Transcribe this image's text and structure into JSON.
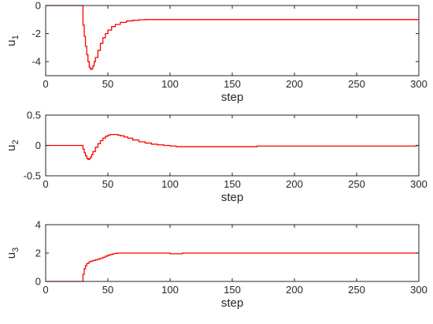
{
  "chart_data": [
    {
      "type": "line",
      "xlabel": "step",
      "ylabel": {
        "base": "u",
        "sub": "1"
      },
      "xlim": [
        0,
        300
      ],
      "ylim": [
        -5,
        0
      ],
      "xticks": [
        0,
        50,
        100,
        150,
        200,
        250,
        300
      ],
      "yticks": [
        -4,
        -2,
        0
      ],
      "ytick_labels": [
        "-4",
        "-2",
        "0"
      ],
      "grid": false,
      "step_plot": true,
      "series": [
        {
          "color": "#ff0000",
          "x": [
            0,
            29,
            30,
            31,
            32,
            33,
            34,
            35,
            36,
            37,
            38,
            39,
            40,
            42,
            44,
            46,
            48,
            50,
            53,
            56,
            60,
            65,
            70,
            75,
            80,
            85,
            90,
            100,
            150,
            200,
            250,
            300
          ],
          "y": [
            0,
            0,
            -1.4,
            -2.2,
            -2.9,
            -3.5,
            -4.0,
            -4.4,
            -4.55,
            -4.5,
            -4.3,
            -4.0,
            -3.7,
            -3.2,
            -2.7,
            -2.3,
            -2.0,
            -1.75,
            -1.5,
            -1.35,
            -1.2,
            -1.1,
            -1.05,
            -1.02,
            -1.0,
            -1.0,
            -1.0,
            -1.0,
            -1.0,
            -1.0,
            -1.0,
            -1.0
          ]
        }
      ]
    },
    {
      "type": "line",
      "xlabel": "step",
      "ylabel": {
        "base": "u",
        "sub": "2"
      },
      "xlim": [
        0,
        300
      ],
      "ylim": [
        -0.5,
        0.5
      ],
      "xticks": [
        0,
        50,
        100,
        150,
        200,
        250,
        300
      ],
      "yticks": [
        -0.5,
        0,
        0.5
      ],
      "ytick_labels": [
        "-0.5",
        "0",
        "0.5"
      ],
      "grid": false,
      "step_plot": true,
      "series": [
        {
          "color": "#ff0000",
          "x": [
            0,
            29,
            30,
            31,
            32,
            33,
            34,
            35,
            36,
            37,
            38,
            40,
            42,
            44,
            46,
            48,
            50,
            52,
            54,
            56,
            58,
            60,
            63,
            66,
            70,
            75,
            80,
            85,
            90,
            95,
            100,
            105,
            110,
            130,
            150,
            165,
            170,
            200,
            250,
            298,
            300
          ],
          "y": [
            0,
            0,
            -0.06,
            -0.12,
            -0.17,
            -0.21,
            -0.23,
            -0.22,
            -0.19,
            -0.15,
            -0.1,
            -0.03,
            0.03,
            0.08,
            0.12,
            0.15,
            0.17,
            0.18,
            0.18,
            0.18,
            0.17,
            0.16,
            0.14,
            0.12,
            0.09,
            0.06,
            0.04,
            0.02,
            0.01,
            0.0,
            -0.01,
            -0.02,
            -0.02,
            -0.02,
            -0.02,
            -0.02,
            -0.01,
            -0.01,
            -0.01,
            0.0,
            0.0
          ]
        }
      ]
    },
    {
      "type": "line",
      "xlabel": "step",
      "ylabel": {
        "base": "u",
        "sub": "3"
      },
      "xlim": [
        0,
        300
      ],
      "ylim": [
        0,
        4
      ],
      "xticks": [
        0,
        50,
        100,
        150,
        200,
        250,
        300
      ],
      "yticks": [
        0,
        2,
        4
      ],
      "ytick_labels": [
        "0",
        "2",
        "4"
      ],
      "grid": false,
      "step_plot": true,
      "series": [
        {
          "color": "#ff0000",
          "x": [
            0,
            29,
            30,
            31,
            32,
            33,
            34,
            35,
            36,
            38,
            40,
            42,
            44,
            46,
            48,
            50,
            52,
            54,
            56,
            58,
            60,
            70,
            80,
            90,
            97,
            100,
            105,
            110,
            150,
            200,
            250,
            300
          ],
          "y": [
            0,
            0,
            0.5,
            0.9,
            1.1,
            1.25,
            1.3,
            1.38,
            1.42,
            1.48,
            1.52,
            1.58,
            1.63,
            1.7,
            1.78,
            1.85,
            1.9,
            1.95,
            1.98,
            2.0,
            2.0,
            2.0,
            2.0,
            2.0,
            2.0,
            1.95,
            1.95,
            2.0,
            2.0,
            2.0,
            2.0,
            2.0
          ]
        }
      ]
    }
  ]
}
